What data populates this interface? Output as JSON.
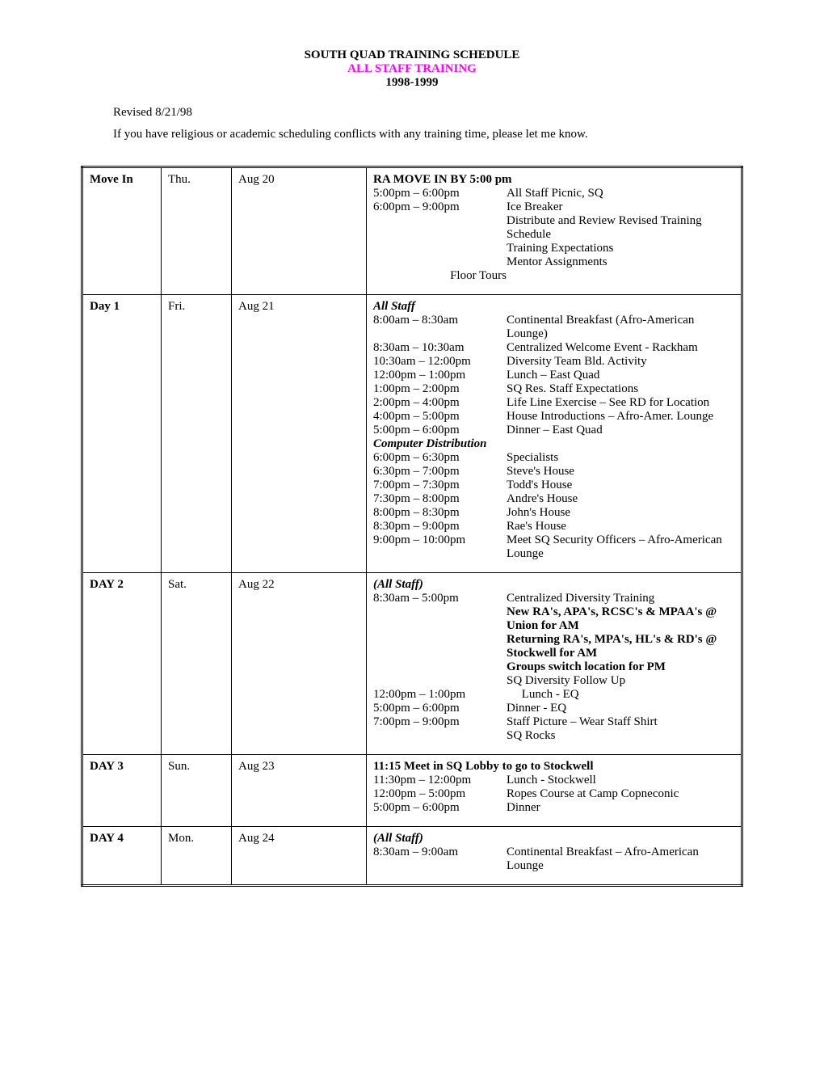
{
  "header": {
    "title1": "SOUTH QUAD TRAINING SCHEDULE",
    "title2": "ALL STAFF TRAINING",
    "title3": "1998-1999"
  },
  "revised": "Revised 8/21/98",
  "note": "If you have religious or academic scheduling conflicts with any training time, please let me know.",
  "rows": [
    {
      "label": "Move In",
      "dow": "Thu.",
      "date": "Aug 20",
      "header_line": "RA MOVE IN BY 5:00 pm",
      "entries": [
        {
          "time": "5:00pm – 6:00pm",
          "desc": "All Staff Picnic, SQ"
        },
        {
          "time": "6:00pm – 9:00pm",
          "desc": "Ice Breaker"
        },
        {
          "time": "",
          "desc": "Distribute and Review Revised Training Schedule"
        },
        {
          "time": "",
          "desc": "Training Expectations"
        },
        {
          "time": "",
          "desc": "Mentor Assignments"
        },
        {
          "time_center": "Floor Tours",
          "desc": ""
        }
      ]
    },
    {
      "label": "Day 1",
      "dow": "Fri.",
      "date": "Aug 21",
      "header_line_italic": "All Staff",
      "entries": [
        {
          "time": "8:00am – 8:30am",
          "desc": "Continental Breakfast (Afro-American Lounge)"
        },
        {
          "time": "8:30am – 10:30am",
          "desc": "Centralized Welcome Event - Rackham"
        },
        {
          "time": "10:30am – 12:00pm",
          "desc": "Diversity Team Bld. Activity"
        },
        {
          "time": "12:00pm – 1:00pm",
          "desc": "Lunch – East Quad"
        },
        {
          "time": "1:00pm – 2:00pm",
          "desc": "SQ Res. Staff Expectations"
        },
        {
          "time": "2:00pm – 4:00pm",
          "desc": "Life Line Exercise – See RD for Location"
        },
        {
          "time": "4:00pm – 5:00pm",
          "desc": "House Introductions – Afro-Amer. Lounge"
        },
        {
          "time": "5:00pm – 6:00pm",
          "desc": "Dinner – East Quad"
        }
      ],
      "sub_header_italic": "Computer Distribution",
      "entries2": [
        {
          "time": "6:00pm – 6:30pm",
          "desc": "Specialists"
        },
        {
          "time": "6:30pm – 7:00pm",
          "desc": "Steve's House"
        },
        {
          "time": "7:00pm – 7:30pm",
          "desc": "Todd's House"
        },
        {
          "time": "7:30pm – 8:00pm",
          "desc": "Andre's House"
        },
        {
          "time": "8:00pm – 8:30pm",
          "desc": "John's House"
        },
        {
          "time": "8:30pm – 9:00pm",
          "desc": "Rae's House"
        },
        {
          "time": "",
          "desc": ""
        },
        {
          "time": "9:00pm – 10:00pm",
          "desc": "Meet SQ Security Officers – Afro-American Lounge"
        }
      ]
    },
    {
      "label": "DAY 2",
      "dow": "Sat.",
      "date": "Aug 22",
      "header_line_italic": "(All Staff)",
      "entries": [
        {
          "time": "8:30am – 5:00pm",
          "desc": "Centralized Diversity Training"
        },
        {
          "time": "",
          "desc_bold": "New RA's, APA's, RCSC's & MPAA's @ Union for AM"
        },
        {
          "time": "",
          "desc_bold": "Returning RA's, MPA's, HL's & RD's @ Stockwell for AM"
        },
        {
          "time": "",
          "desc_bold": "Groups switch location for PM"
        },
        {
          "time": "",
          "desc": "SQ Diversity Follow Up"
        },
        {
          "time": "12:00pm – 1:00pm",
          "desc": "     Lunch - EQ"
        },
        {
          "time": "5:00pm – 6:00pm",
          "desc": "Dinner - EQ"
        },
        {
          "time": "7:00pm – 9:00pm",
          "desc": "Staff Picture – Wear Staff Shirt"
        },
        {
          "time": "",
          "desc": "SQ Rocks"
        }
      ]
    },
    {
      "label": "DAY 3",
      "dow": "Sun.",
      "date": "Aug 23",
      "header_line": "11:15 Meet in SQ Lobby to go to Stockwell",
      "entries": [
        {
          "time": "11:30pm – 12:00pm",
          "desc": "Lunch - Stockwell"
        },
        {
          "time": "12:00pm – 5:00pm",
          "desc": "Ropes Course at Camp Copneconic"
        },
        {
          "time": "5:00pm – 6:00pm",
          "desc": "Dinner"
        }
      ]
    },
    {
      "label": "DAY 4",
      "dow": "Mon.",
      "date": "Aug 24",
      "header_line_italic": "(All Staff)",
      "entries": [
        {
          "time": "8:30am – 9:00am",
          "desc": "Continental Breakfast – Afro-American Lounge"
        }
      ]
    }
  ]
}
